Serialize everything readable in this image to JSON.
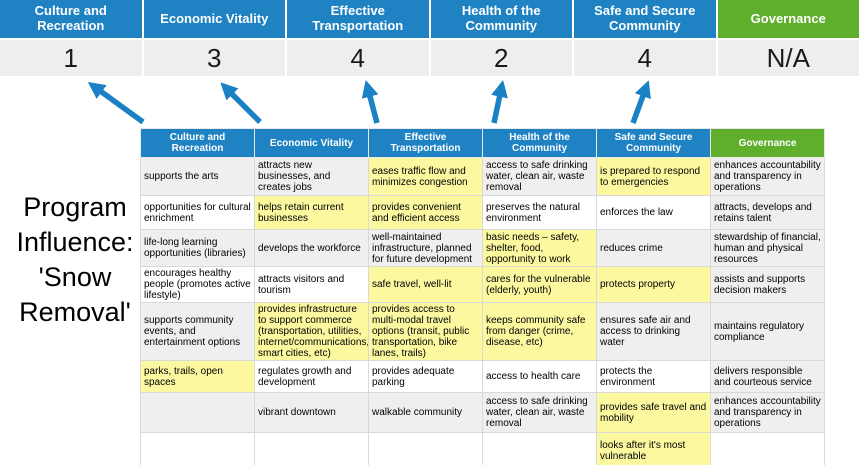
{
  "slide_title": {
    "full": "Program Influence: 'Snow Removal'",
    "lines": [
      "Program",
      "Influence:",
      "'Snow",
      "Removal'"
    ]
  },
  "priorities": [
    {
      "name": "Culture and Recreation",
      "score": "1",
      "theme": "blue"
    },
    {
      "name": "Economic Vitality",
      "score": "3",
      "theme": "blue"
    },
    {
      "name": "Effective Transportation",
      "score": "4",
      "theme": "blue"
    },
    {
      "name": "Health of the Community",
      "score": "2",
      "theme": "blue"
    },
    {
      "name": "Safe and Secure Community",
      "score": "4",
      "theme": "blue"
    },
    {
      "name": "Governance",
      "score": "N/A",
      "theme": "green"
    }
  ],
  "matrix": {
    "headers": [
      "Culture and Recreation",
      "Economic Vitality",
      "Effective Transportation",
      "Health of the Community",
      "Safe and Secure Community",
      "Governance"
    ],
    "rows": [
      {
        "cells": [
          {
            "text": "supports the arts",
            "hl": false
          },
          {
            "text": "attracts new businesses, and creates jobs",
            "hl": false
          },
          {
            "text": "eases traffic flow and minimizes congestion",
            "hl": true
          },
          {
            "text": "access to safe drinking water, clean air, waste removal",
            "hl": false
          },
          {
            "text": "is prepared to respond to emergencies",
            "hl": true
          },
          {
            "text": "enhances accountability and transparency in operations",
            "hl": false
          }
        ]
      },
      {
        "cells": [
          {
            "text": "opportunities for cultural enrichment",
            "hl": false
          },
          {
            "text": "helps retain current businesses",
            "hl": true
          },
          {
            "text": "provides convenient and efficient access",
            "hl": true
          },
          {
            "text": "preserves the natural environment",
            "hl": false
          },
          {
            "text": "enforces the law",
            "hl": false
          },
          {
            "text": "attracts, develops and retains talent",
            "hl": false
          }
        ]
      },
      {
        "cells": [
          {
            "text": "life-long learning opportunities (libraries)",
            "hl": false
          },
          {
            "text": "develops the workforce",
            "hl": false
          },
          {
            "text": "well-maintained infrastructure, planned for future development",
            "hl": false
          },
          {
            "text": "basic needs – safety, shelter, food, opportunity to work",
            "hl": true
          },
          {
            "text": "reduces crime",
            "hl": false
          },
          {
            "text": "stewardship of financial, human and physical resources",
            "hl": false
          }
        ]
      },
      {
        "cells": [
          {
            "text": "encourages healthy people (promotes active lifestyle)",
            "hl": false
          },
          {
            "text": "attracts visitors and tourism",
            "hl": false
          },
          {
            "text": "safe travel, well-lit",
            "hl": true
          },
          {
            "text": "cares for the vulnerable (elderly, youth)",
            "hl": true
          },
          {
            "text": "protects property",
            "hl": true
          },
          {
            "text": "assists and supports decision makers",
            "hl": false
          }
        ]
      },
      {
        "cells": [
          {
            "text": "supports community events, and entertainment options",
            "hl": false
          },
          {
            "text": "provides infrastructure to support commerce (transportation, utilities, internet/communications, smart cities, etc)",
            "hl": true
          },
          {
            "text": "provides access to multi-modal travel options (transit, public transportation, bike lanes, trails)",
            "hl": true
          },
          {
            "text": "keeps community safe from danger (crime, disease, etc)",
            "hl": true
          },
          {
            "text": "ensures safe air and access to drinking water",
            "hl": false
          },
          {
            "text": "maintains regulatory compliance",
            "hl": false
          }
        ]
      },
      {
        "cells": [
          {
            "text": "parks, trails, open spaces",
            "hl": true
          },
          {
            "text": "regulates growth and development",
            "hl": false
          },
          {
            "text": "provides adequate parking",
            "hl": false
          },
          {
            "text": "access to health care",
            "hl": false
          },
          {
            "text": "protects the environment",
            "hl": false
          },
          {
            "text": "delivers responsible and courteous service",
            "hl": false
          }
        ]
      },
      {
        "cells": [
          {
            "text": "",
            "hl": false
          },
          {
            "text": "vibrant downtown",
            "hl": false
          },
          {
            "text": "walkable community",
            "hl": false
          },
          {
            "text": "access to safe drinking water, clean air, waste removal",
            "hl": false
          },
          {
            "text": "provides safe travel and mobility",
            "hl": true
          },
          {
            "text": "enhances accountability and transparency in operations",
            "hl": false
          }
        ]
      },
      {
        "cells": [
          {
            "text": "",
            "hl": false
          },
          {
            "text": "",
            "hl": false
          },
          {
            "text": "",
            "hl": false
          },
          {
            "text": "",
            "hl": false
          },
          {
            "text": "looks after it's most vulnerable",
            "hl": true
          },
          {
            "text": "",
            "hl": false
          }
        ]
      },
      {
        "cells": [
          {
            "text": "",
            "hl": false
          },
          {
            "text": "",
            "hl": false
          },
          {
            "text": "",
            "hl": false
          },
          {
            "text": "",
            "hl": false
          },
          {
            "text": "",
            "hl": true
          },
          {
            "text": "",
            "hl": false
          }
        ]
      }
    ]
  },
  "colors": {
    "priority_blue": "#1e82c3",
    "governance_green": "#5faf2d",
    "highlight_yellow": "#fbf8a0",
    "row_band_gray": "#efefef",
    "score_bg_gray": "#eeeeee",
    "arrow_blue": "#1a82c4"
  }
}
